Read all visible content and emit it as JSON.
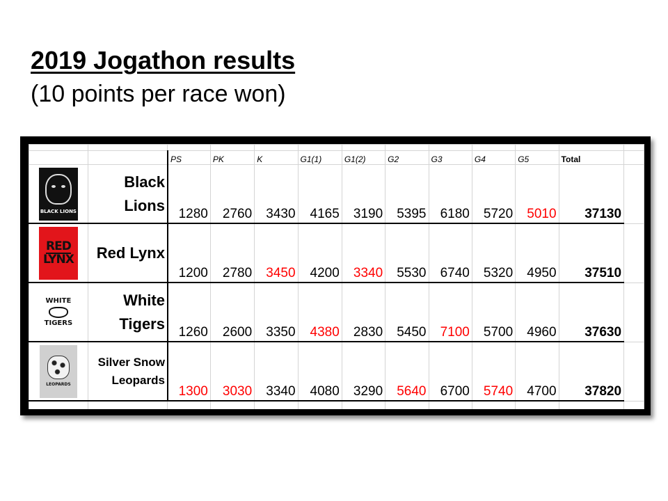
{
  "title": "2019 Jogathon results",
  "subtitle": "(10 points per race won)",
  "columns": [
    "PS",
    "PK",
    "K",
    "G1(1)",
    "G1(2)",
    "G2",
    "G3",
    "G4",
    "G5",
    "Total"
  ],
  "colors": {
    "winner_value": "#ff0000",
    "lynx_logo": "#e2151b"
  },
  "teams": [
    {
      "name_line1": "Black",
      "name_line2": "Lions",
      "logo_icon": "black-lions-logo",
      "logo_text": "BLACK LIONS",
      "scores": [
        {
          "v": "1280",
          "win": false
        },
        {
          "v": "2760",
          "win": false
        },
        {
          "v": "3430",
          "win": false
        },
        {
          "v": "4165",
          "win": false
        },
        {
          "v": "3190",
          "win": false
        },
        {
          "v": "5395",
          "win": false
        },
        {
          "v": "6180",
          "win": false
        },
        {
          "v": "5720",
          "win": false
        },
        {
          "v": "5010",
          "win": true
        }
      ],
      "total": "37130"
    },
    {
      "name_line1": "Red Lynx",
      "name_line2": "",
      "logo_icon": "red-lynx-logo",
      "logo_text_1": "RED",
      "logo_text_2": "LYNX",
      "scores": [
        {
          "v": "1200",
          "win": false
        },
        {
          "v": "2780",
          "win": false
        },
        {
          "v": "3450",
          "win": true
        },
        {
          "v": "4200",
          "win": false
        },
        {
          "v": "3340",
          "win": true
        },
        {
          "v": "5530",
          "win": false
        },
        {
          "v": "6740",
          "win": false
        },
        {
          "v": "5320",
          "win": false
        },
        {
          "v": "4950",
          "win": false
        }
      ],
      "total": "37510"
    },
    {
      "name_line1": "White",
      "name_line2": "Tigers",
      "logo_icon": "white-tigers-logo",
      "logo_text_1": "WHITE",
      "logo_text_2": "TIGERS",
      "scores": [
        {
          "v": "1260",
          "win": false
        },
        {
          "v": "2600",
          "win": false
        },
        {
          "v": "3350",
          "win": false
        },
        {
          "v": "4380",
          "win": true
        },
        {
          "v": "2830",
          "win": false
        },
        {
          "v": "5450",
          "win": false
        },
        {
          "v": "7100",
          "win": true
        },
        {
          "v": "5700",
          "win": false
        },
        {
          "v": "4960",
          "win": false
        }
      ],
      "total": "37630"
    },
    {
      "name_line1": "Silver Snow",
      "name_line2": "Leopards",
      "logo_icon": "silver-snow-leopards-logo",
      "logo_text": "LEOPARDS",
      "scores": [
        {
          "v": "1300",
          "win": true
        },
        {
          "v": "3030",
          "win": true
        },
        {
          "v": "3340",
          "win": false
        },
        {
          "v": "4080",
          "win": false
        },
        {
          "v": "3290",
          "win": false
        },
        {
          "v": "5640",
          "win": true
        },
        {
          "v": "6700",
          "win": false
        },
        {
          "v": "5740",
          "win": true
        },
        {
          "v": "4700",
          "win": false
        }
      ],
      "total": "37820"
    }
  ]
}
